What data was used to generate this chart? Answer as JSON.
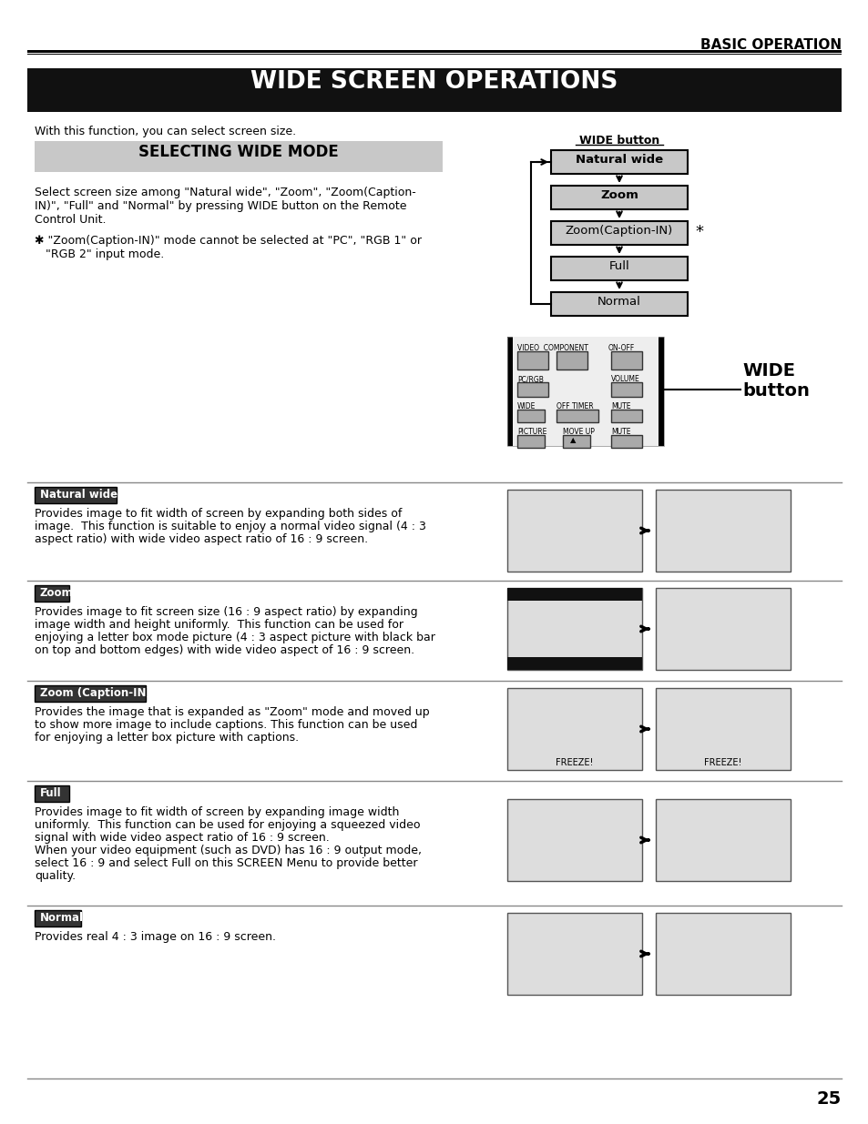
{
  "page_title": "BASIC OPERATION",
  "main_title": "WIDE SCREEN OPERATIONS",
  "section_title": "SELECTING WIDE MODE",
  "intro_text": "With this function, you can select screen size.",
  "select_text_line1": "Select screen size among \"Natural wide\", \"Zoom\", \"Zoom(Caption-",
  "select_text_line2": "IN)\", \"Full\" and \"Normal\" by pressing WIDE button on the Remote",
  "select_text_line3": "Control Unit.",
  "note_line1": "✱ \"Zoom(Caption-IN)\" mode cannot be selected at \"PC\", \"RGB 1\" or",
  "note_line2": "   \"RGB 2\" input mode.",
  "wide_button_label": "WIDE button",
  "flow_items": [
    "Natural wide",
    "Zoom",
    "Zoom(Caption-IN)",
    "Full",
    "Normal"
  ],
  "wide_button_side_label": "WIDE\nbutton",
  "nw_desc_line1": "Provides image to fit width of screen by expanding both sides of",
  "nw_desc_line2": "image.  This function is suitable to enjoy a normal video signal (4 : 3",
  "nw_desc_line3": "aspect ratio) with wide video aspect ratio of 16 : 9 screen.",
  "zoom_desc_line1": "Provides image to fit screen size (16 : 9 aspect ratio) by expanding",
  "zoom_desc_line2": "image width and height uniformly.  This function can be used for",
  "zoom_desc_line3": "enjoying a letter box mode picture (4 : 3 aspect picture with black bar",
  "zoom_desc_line4": "on top and bottom edges) with wide video aspect of 16 : 9 screen.",
  "zc_desc_line1": "Provides the image that is expanded as \"Zoom\" mode and moved up",
  "zc_desc_line2": "to show more image to include captions. This function can be used",
  "zc_desc_line3": "for enjoying a letter box picture with captions.",
  "full_desc_line1": "Provides image to fit width of screen by expanding image width",
  "full_desc_line2": "uniformly.  This function can be used for enjoying a squeezed video",
  "full_desc_line3": "signal with wide video aspect ratio of 16 : 9 screen.",
  "full_desc_line4": "When your video equipment (such as DVD) has 16 : 9 output mode,",
  "full_desc_line5": "select 16 : 9 and select Full on this SCREEN Menu to provide better",
  "full_desc_line6": "quality.",
  "normal_desc": "Provides real 4 : 3 image on 16 : 9 screen.",
  "page_number": "25",
  "bg_color": "#ffffff",
  "main_title_bg": "#111111",
  "main_title_fg": "#ffffff",
  "section_title_bg": "#c8c8c8",
  "flow_box_bg": "#c8c8c8",
  "flow_box_border": "#000000",
  "label_dark_bg": "#333333",
  "label_dark_fg": "#ffffff",
  "label_light_bg": "#c8c8c8",
  "label_light_fg": "#000000"
}
